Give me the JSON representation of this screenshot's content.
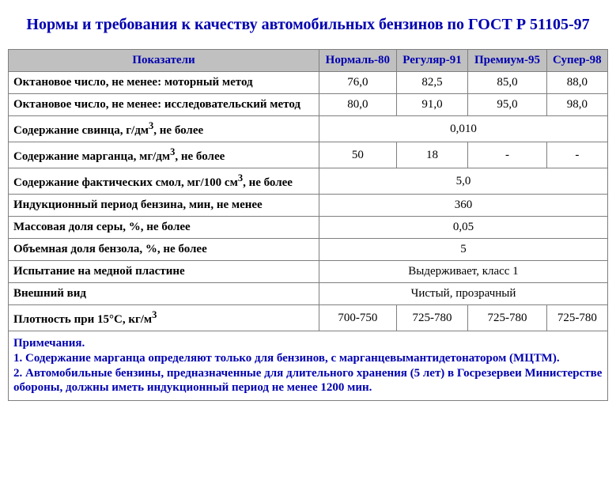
{
  "title": "Нормы и требования к качеству автомобильных бензинов по ГОСТ Р 51105-97",
  "headers": {
    "indicator": "Показатели",
    "normal80": "Нормаль-80",
    "regular91": "Регуляр-91",
    "premium95": "Премиум-95",
    "super98": "Супер-98"
  },
  "rows": [
    {
      "label": "Октановое число, не менее: моторный метод",
      "v": [
        "76,0",
        "82,5",
        "85,0",
        "88,0"
      ]
    },
    {
      "label": "Октановое число, не менее: исследовательский метод",
      "v": [
        "80,0",
        "91,0",
        "95,0",
        "98,0"
      ]
    },
    {
      "label_html": "Содержание свинца, г/дм<sup>3</sup>, не более",
      "span": "0,010"
    },
    {
      "label_html": "Содержание марганца, мг/дм<sup>3</sup>, не более",
      "v": [
        "50",
        "18",
        "-",
        "-"
      ]
    },
    {
      "label_html": "Содержание фактических смол, мг/100 см<sup>3</sup>, не более",
      "span": "5,0"
    },
    {
      "label": "Индукционный период бензина, мин, не менее",
      "span": "360"
    },
    {
      "label": "Массовая доля серы, %, не более",
      "span": "0,05"
    },
    {
      "label": "Объемная доля бензола, %, не более",
      "span": "5"
    },
    {
      "label": "Испытание на медной пластине",
      "span": "Выдерживает, класс 1"
    },
    {
      "label": "Внешний вид",
      "span": "Чистый, прозрачный"
    },
    {
      "label_html": "Плотность при 15°С, кг/м<sup>3</sup>",
      "v": [
        "700-750",
        "725-780",
        "725-780",
        "725-780"
      ]
    }
  ],
  "notes": {
    "title": "Примечания.",
    "line1": "1. Содержание марганца определяют только для бензинов, с марганцевымантидетонатором (МЦТМ).",
    "line2": "2. Автомобильные бензины, предназначенные для длительного хранения (5 лет) в Госрезервеи Министерстве обороны, должны иметь индукционный период не менее 1200 мин."
  },
  "style": {
    "header_bg": "#c0c0c0",
    "accent_color": "#0000b0",
    "border_color": "#7f7f7f",
    "font_family": "Times New Roman"
  }
}
